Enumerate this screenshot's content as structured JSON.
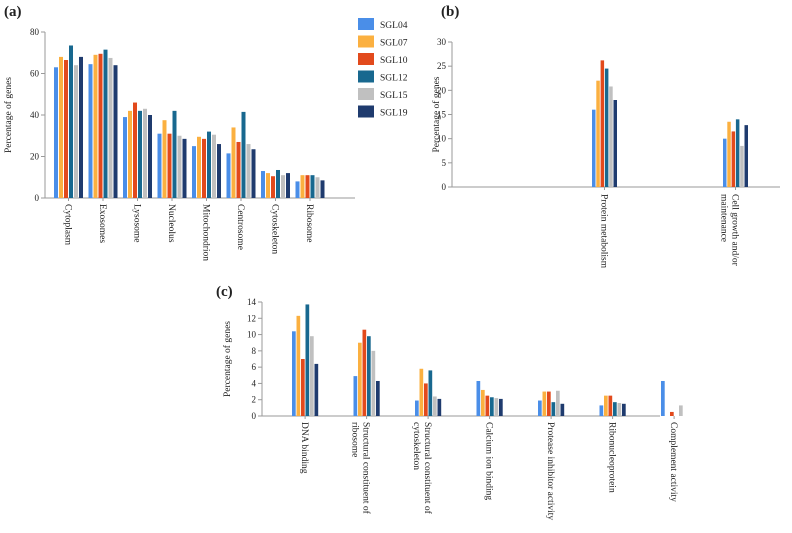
{
  "colors": {
    "SGL04": "#4a8ee8",
    "SGL07": "#fbb040",
    "SGL10": "#e24a1c",
    "SGL12": "#18688f",
    "SGL15": "#c0c0c0",
    "SGL19": "#1f3b6e"
  },
  "chart_data": [
    {
      "panel_label": "(a)",
      "type": "bar",
      "ylabel": "Percentage of genes",
      "ylim": [
        0,
        80
      ],
      "yticks": [
        "0",
        "20",
        "40",
        "60",
        "80"
      ],
      "legend_position": "right",
      "categories": [
        "Cytoplasm",
        "Exosomes",
        "Lysosome",
        "Nucleolus",
        "Mitochondrion",
        "Centrosome",
        "Cytoskeleton",
        "Ribosome"
      ],
      "series": [
        {
          "name": "SGL04",
          "values": [
            63,
            64.5,
            39,
            31,
            25,
            21.5,
            13,
            8
          ]
        },
        {
          "name": "SGL07",
          "values": [
            68,
            69,
            42,
            37.5,
            29.5,
            34,
            12,
            11
          ]
        },
        {
          "name": "SGL10",
          "values": [
            66.5,
            69.5,
            46,
            31,
            28.5,
            27,
            10.5,
            11
          ]
        },
        {
          "name": "SGL12",
          "values": [
            73.5,
            71.5,
            42,
            42,
            32,
            41.5,
            13.5,
            11
          ]
        },
        {
          "name": "SGL15",
          "values": [
            64,
            67.5,
            43,
            30,
            30.5,
            26,
            11,
            10
          ]
        },
        {
          "name": "SGL19",
          "values": [
            68,
            64,
            40,
            28.5,
            26,
            23.5,
            12,
            8.5
          ]
        }
      ]
    },
    {
      "panel_label": "(b)",
      "type": "bar",
      "ylabel": "Percentage of genes",
      "ylim": [
        0,
        30
      ],
      "yticks": [
        "0",
        "5",
        "10",
        "15",
        "20",
        "25",
        "30"
      ],
      "categories": [
        "Protein metabolism",
        "Cell growth and/or maintenance"
      ],
      "series": [
        {
          "name": "SGL04",
          "values": [
            16,
            10
          ]
        },
        {
          "name": "SGL07",
          "values": [
            22,
            13.5
          ]
        },
        {
          "name": "SGL10",
          "values": [
            26.2,
            11.5
          ]
        },
        {
          "name": "SGL12",
          "values": [
            24.5,
            14
          ]
        },
        {
          "name": "SGL15",
          "values": [
            20.8,
            8.5
          ]
        },
        {
          "name": "SGL19",
          "values": [
            18,
            12.8
          ]
        }
      ]
    },
    {
      "panel_label": "(c)",
      "type": "bar",
      "ylabel": "Percentage of genes",
      "ylim": [
        0,
        14
      ],
      "yticks": [
        "0",
        "2",
        "4",
        "6",
        "8",
        "10",
        "12",
        "14"
      ],
      "categories": [
        "DNA binding",
        "Structural constituent of ribosome",
        "Structural constituent of cytoskeleton",
        "Calcium ion binding",
        "Protease inhibitor activity",
        "Ribonucleoprotein",
        "Complement activity"
      ],
      "series": [
        {
          "name": "SGL04",
          "values": [
            10.4,
            4.9,
            1.9,
            4.3,
            1.9,
            1.3,
            4.3
          ]
        },
        {
          "name": "SGL07",
          "values": [
            12.3,
            9.0,
            5.8,
            3.2,
            3.0,
            2.5,
            0
          ]
        },
        {
          "name": "SGL10",
          "values": [
            7.0,
            10.6,
            4.0,
            2.5,
            3.0,
            2.5,
            0.5
          ]
        },
        {
          "name": "SGL12",
          "values": [
            13.7,
            9.8,
            5.6,
            2.3,
            1.7,
            1.7,
            0
          ]
        },
        {
          "name": "SGL15",
          "values": [
            9.8,
            8.0,
            2.4,
            2.2,
            3.1,
            1.6,
            1.3
          ]
        },
        {
          "name": "SGL19",
          "values": [
            6.4,
            4.3,
            2.1,
            2.1,
            1.5,
            1.5,
            0
          ]
        }
      ]
    }
  ]
}
